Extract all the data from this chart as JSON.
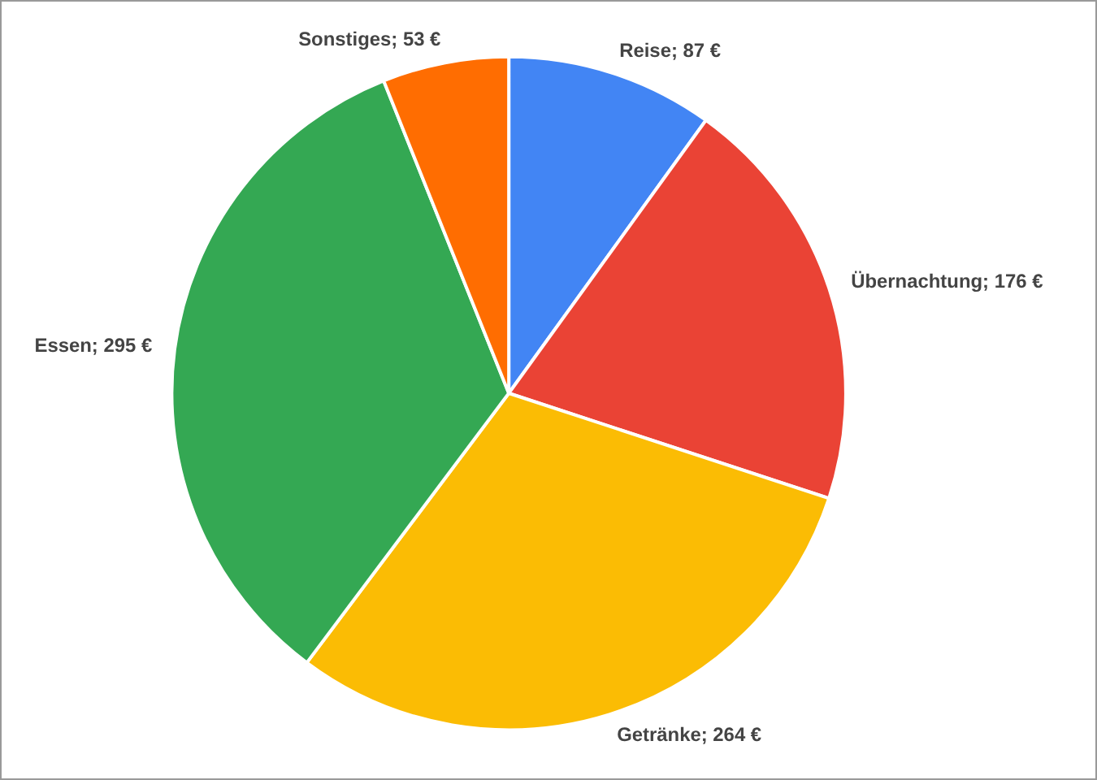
{
  "chart_data": {
    "type": "pie",
    "categories": [
      "Reise",
      "Übernachtung",
      "Getränke",
      "Essen",
      "Sonstiges"
    ],
    "values": [
      87,
      176,
      264,
      295,
      53
    ],
    "colors": [
      "#4285f4",
      "#ea4335",
      "#fbbc04",
      "#34a853",
      "#ff6d01"
    ],
    "value_labels": [
      "87 €",
      "176 €",
      "264 €",
      "295 €",
      "53 €"
    ],
    "legend": false
  }
}
